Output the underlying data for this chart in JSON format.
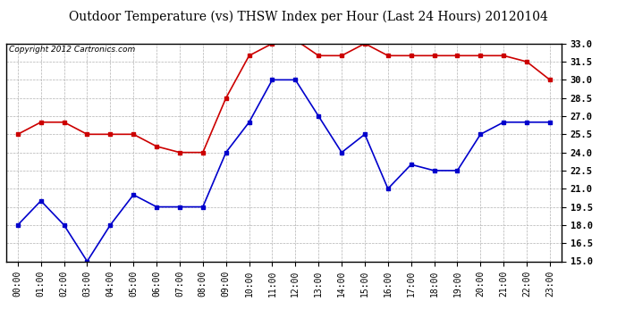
{
  "title": "Outdoor Temperature (vs) THSW Index per Hour (Last 24 Hours) 20120104",
  "copyright": "Copyright 2012 Cartronics.com",
  "hours": [
    "00:00",
    "01:00",
    "02:00",
    "03:00",
    "04:00",
    "05:00",
    "06:00",
    "07:00",
    "08:00",
    "09:00",
    "10:00",
    "11:00",
    "12:00",
    "13:00",
    "14:00",
    "15:00",
    "16:00",
    "17:00",
    "18:00",
    "19:00",
    "20:00",
    "21:00",
    "22:00",
    "23:00"
  ],
  "temp_blue": [
    18.0,
    20.0,
    18.0,
    15.0,
    18.0,
    20.5,
    19.5,
    19.5,
    19.5,
    24.0,
    26.5,
    30.0,
    30.0,
    27.0,
    24.0,
    25.5,
    21.0,
    23.0,
    22.5,
    22.5,
    25.5,
    26.5,
    26.5,
    26.5
  ],
  "thsw_red": [
    25.5,
    26.5,
    26.5,
    25.5,
    25.5,
    25.5,
    24.5,
    24.0,
    24.0,
    28.5,
    32.0,
    33.0,
    33.3,
    32.0,
    32.0,
    33.0,
    32.0,
    32.0,
    32.0,
    32.0,
    32.0,
    32.0,
    31.5,
    30.0
  ],
  "ylim": [
    15.0,
    33.0
  ],
  "yticks": [
    15.0,
    16.5,
    18.0,
    19.5,
    21.0,
    22.5,
    24.0,
    25.5,
    27.0,
    28.5,
    30.0,
    31.5,
    33.0
  ],
  "blue_color": "#0000cc",
  "red_color": "#cc0000",
  "bg_color": "#ffffff",
  "grid_color": "#aaaaaa",
  "title_fontsize": 10,
  "copyright_fontsize": 6.5,
  "tick_fontsize": 7.5,
  "xtick_fontsize": 7
}
